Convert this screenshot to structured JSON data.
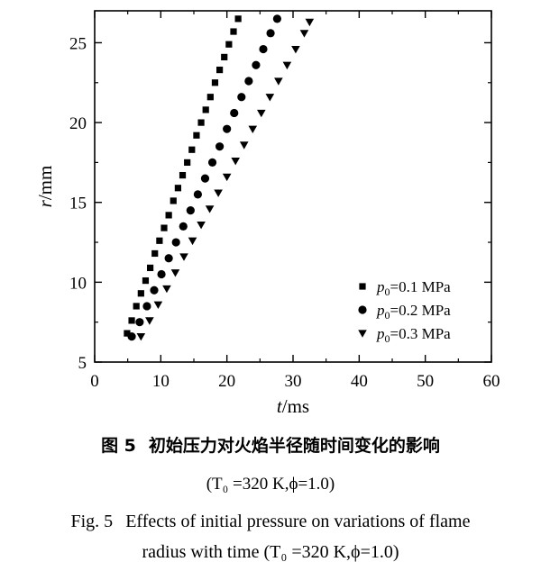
{
  "chart_data": {
    "type": "scatter",
    "title": "",
    "xlabel": "t/ms",
    "ylabel": "r/mm",
    "xlim": [
      0,
      60
    ],
    "ylim": [
      5,
      27
    ],
    "xticks": [
      0,
      10,
      20,
      30,
      40,
      50,
      60
    ],
    "yticks": [
      5,
      10,
      15,
      20,
      25
    ],
    "grid": false,
    "legend_position": "bottom-right",
    "series": [
      {
        "name": "p0=0.1 MPa",
        "legend_main": "p",
        "legend_sub": "0",
        "legend_rest": "=0.1 MPa",
        "marker": "square",
        "x": [
          4.9,
          5.6,
          6.3,
          7.0,
          7.7,
          8.4,
          9.1,
          9.8,
          10.5,
          11.2,
          11.9,
          12.6,
          13.3,
          14.0,
          14.7,
          15.4,
          16.1,
          16.8,
          17.5,
          18.2,
          18.9,
          19.6,
          20.3,
          21.0,
          21.7
        ],
        "y": [
          6.8,
          7.6,
          8.5,
          9.3,
          10.1,
          10.9,
          11.8,
          12.6,
          13.4,
          14.2,
          15.1,
          15.9,
          16.7,
          17.5,
          18.3,
          19.2,
          20.0,
          20.8,
          21.6,
          22.5,
          23.3,
          24.1,
          24.9,
          25.7,
          26.5
        ]
      },
      {
        "name": "p0=0.2 MPa",
        "legend_main": "p",
        "legend_sub": "0",
        "legend_rest": "=0.2 MPa",
        "marker": "circle",
        "x": [
          5.6,
          6.8,
          7.9,
          9.0,
          10.1,
          11.2,
          12.3,
          13.4,
          14.5,
          15.6,
          16.7,
          17.8,
          18.9,
          20.0,
          21.1,
          22.2,
          23.3,
          24.4,
          25.5,
          26.6,
          27.6
        ],
        "y": [
          6.6,
          7.5,
          8.5,
          9.5,
          10.5,
          11.5,
          12.5,
          13.5,
          14.5,
          15.5,
          16.5,
          17.5,
          18.5,
          19.6,
          20.6,
          21.6,
          22.6,
          23.6,
          24.6,
          25.6,
          26.5
        ]
      },
      {
        "name": "p0=0.3 MPa",
        "legend_main": "p",
        "legend_sub": "0",
        "legend_rest": "=0.3 MPa",
        "marker": "triangle-down",
        "x": [
          7.0,
          8.3,
          9.6,
          10.9,
          12.2,
          13.5,
          14.8,
          16.1,
          17.4,
          18.7,
          20.0,
          21.3,
          22.6,
          23.9,
          25.2,
          26.5,
          27.8,
          29.1,
          30.4,
          31.7,
          32.5
        ],
        "y": [
          6.6,
          7.6,
          8.6,
          9.6,
          10.6,
          11.6,
          12.6,
          13.6,
          14.6,
          15.6,
          16.6,
          17.6,
          18.6,
          19.6,
          20.6,
          21.6,
          22.6,
          23.6,
          24.6,
          25.6,
          26.3
        ]
      }
    ]
  },
  "caption": {
    "zh_label": "图 5",
    "zh_title": "初始压力对火焰半径随时间变化的影响",
    "zh_params": "(T₀ =320 K,ϕ=1.0)",
    "en_label": "Fig. 5",
    "en_line1": "Effects of initial pressure on variations of flame",
    "en_line2": "radius with time (T₀ =320 K,ϕ=1.0)"
  }
}
